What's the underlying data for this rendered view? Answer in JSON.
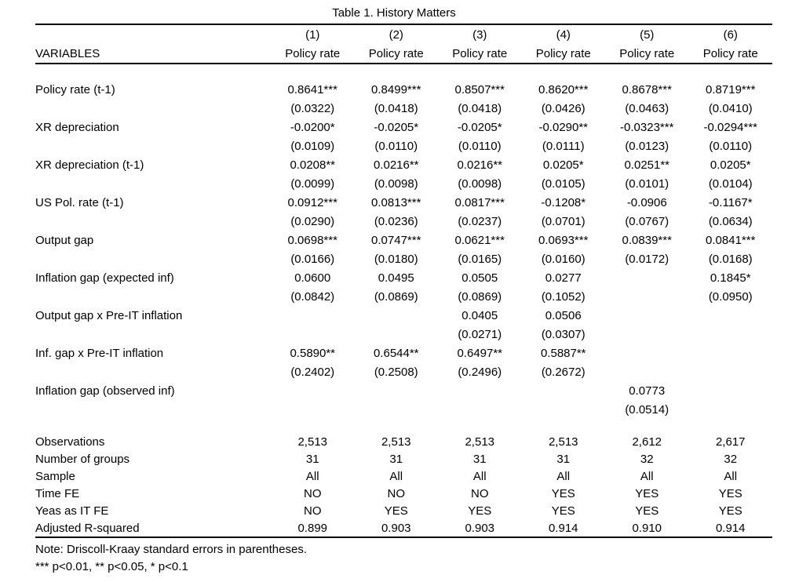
{
  "title": "Table 1. History Matters",
  "header": {
    "variables_label": "VARIABLES",
    "columns": [
      {
        "number": "(1)",
        "dep_var": "Policy rate"
      },
      {
        "number": "(2)",
        "dep_var": "Policy rate"
      },
      {
        "number": "(3)",
        "dep_var": "Policy rate"
      },
      {
        "number": "(4)",
        "dep_var": "Policy rate"
      },
      {
        "number": "(5)",
        "dep_var": "Policy rate"
      },
      {
        "number": "(6)",
        "dep_var": "Policy rate"
      }
    ]
  },
  "coefficients": [
    {
      "label": "Policy rate (t-1)",
      "coefs": [
        "0.8641***",
        "0.8499***",
        "0.8507***",
        "0.8620***",
        "0.8678***",
        "0.8719***"
      ],
      "ses": [
        "(0.0322)",
        "(0.0418)",
        "(0.0418)",
        "(0.0426)",
        "(0.0463)",
        "(0.0410)"
      ]
    },
    {
      "label": "XR depreciation",
      "coefs": [
        "-0.0200*",
        "-0.0205*",
        "-0.0205*",
        "-0.0290**",
        "-0.0323***",
        "-0.0294***"
      ],
      "ses": [
        "(0.0109)",
        "(0.0110)",
        "(0.0110)",
        "(0.0111)",
        "(0.0123)",
        "(0.0110)"
      ]
    },
    {
      "label": "XR depreciation (t-1)",
      "coefs": [
        "0.0208**",
        "0.0216**",
        "0.0216**",
        "0.0205*",
        "0.0251**",
        "0.0205*"
      ],
      "ses": [
        "(0.0099)",
        "(0.0098)",
        "(0.0098)",
        "(0.0105)",
        "(0.0101)",
        "(0.0104)"
      ]
    },
    {
      "label": "US Pol. rate (t-1)",
      "coefs": [
        "0.0912***",
        "0.0813***",
        "0.0817***",
        "-0.1208*",
        "-0.0906",
        "-0.1167*"
      ],
      "ses": [
        "(0.0290)",
        "(0.0236)",
        "(0.0237)",
        "(0.0701)",
        "(0.0767)",
        "(0.0634)"
      ]
    },
    {
      "label": "Output gap",
      "coefs": [
        "0.0698***",
        "0.0747***",
        "0.0621***",
        "0.0693***",
        "0.0839***",
        "0.0841***"
      ],
      "ses": [
        "(0.0166)",
        "(0.0180)",
        "(0.0165)",
        "(0.0160)",
        "(0.0172)",
        "(0.0168)"
      ]
    },
    {
      "label": "Inflation gap (expected inf)",
      "coefs": [
        "0.0600",
        "0.0495",
        "0.0505",
        "0.0277",
        "",
        "0.1845*"
      ],
      "ses": [
        "(0.0842)",
        "(0.0869)",
        "(0.0869)",
        "(0.1052)",
        "",
        "(0.0950)"
      ]
    },
    {
      "label": "Output gap x Pre-IT inflation",
      "coefs": [
        "",
        "",
        "0.0405",
        "0.0506",
        "",
        ""
      ],
      "ses": [
        "",
        "",
        "(0.0271)",
        "(0.0307)",
        "",
        ""
      ]
    },
    {
      "label": "Inf. gap x Pre-IT inflation",
      "coefs": [
        "0.5890**",
        "0.6544**",
        "0.6497**",
        "0.5887**",
        "",
        ""
      ],
      "ses": [
        "(0.2402)",
        "(0.2508)",
        "(0.2496)",
        "(0.2672)",
        "",
        ""
      ]
    },
    {
      "label": "Inflation gap (observed inf)",
      "coefs": [
        "",
        "",
        "",
        "",
        "0.0773",
        ""
      ],
      "ses": [
        "",
        "",
        "",
        "",
        "(0.0514)",
        ""
      ]
    }
  ],
  "statistics": [
    {
      "label": "Observations",
      "values": [
        "2,513",
        "2,513",
        "2,513",
        "2,513",
        "2,612",
        "2,617"
      ]
    },
    {
      "label": "Number of groups",
      "values": [
        "31",
        "31",
        "31",
        "31",
        "32",
        "32"
      ]
    },
    {
      "label": "Sample",
      "values": [
        "All",
        "All",
        "All",
        "All",
        "All",
        "All"
      ]
    },
    {
      "label": "Time FE",
      "values": [
        "NO",
        "NO",
        "NO",
        "YES",
        "YES",
        "YES"
      ]
    },
    {
      "label": "Yeas as IT FE",
      "values": [
        "NO",
        "YES",
        "YES",
        "YES",
        "YES",
        "YES"
      ]
    },
    {
      "label": "Adjusted R-squared",
      "values": [
        "0.899",
        "0.903",
        "0.903",
        "0.914",
        "0.910",
        "0.914"
      ]
    }
  ],
  "notes": {
    "line1": "Note: Driscoll-Kraay standard errors in parentheses.",
    "line2": "*** p<0.01, ** p<0.05, * p<0.1"
  }
}
